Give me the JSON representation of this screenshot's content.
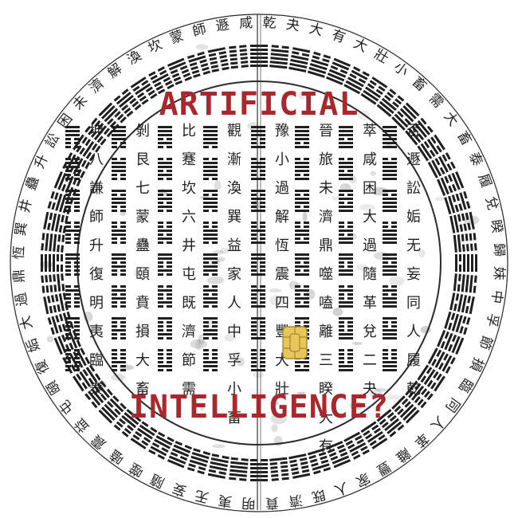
{
  "title_top": "ARTIFICIAL",
  "title_bottom": "INTELLIGENCE?",
  "colors": {
    "ink": "#1f1f1f",
    "title": "#a8282d",
    "chip_fill": "#e7c65a",
    "chip_stroke": "#a9862b",
    "smudge": "#8a8a8a"
  },
  "icons": {
    "chip": "sim-chip-icon",
    "divider": "vertical-divider"
  },
  "inner_columns": [
    "否遯訟姤无妄同人履乾",
    "萃咸困大過隨革兌二夬",
    "晉旅未濟鼎噬嗑離三睽大有",
    "豫小過解恆震四豐大壯",
    "觀漸渙巽益家人中孚小畜",
    "比蹇坎六井屯既濟節需",
    "剝艮七蒙蠱頤賁損大畜",
    "坤八謙師升復明夷臨泰"
  ],
  "ring_text": "乾夬大有大壯小畜需大畜泰履兌睽歸妹中孚節損臨同人革離豐家人既濟賁明夷无妄隨噬嗑震益屯頤復姤大過鼎恆巽井蠱升訟困未濟解渙坎蒙師遯咸旅小過漸蹇艮謙否萃晉豫觀比剝坤"
}
